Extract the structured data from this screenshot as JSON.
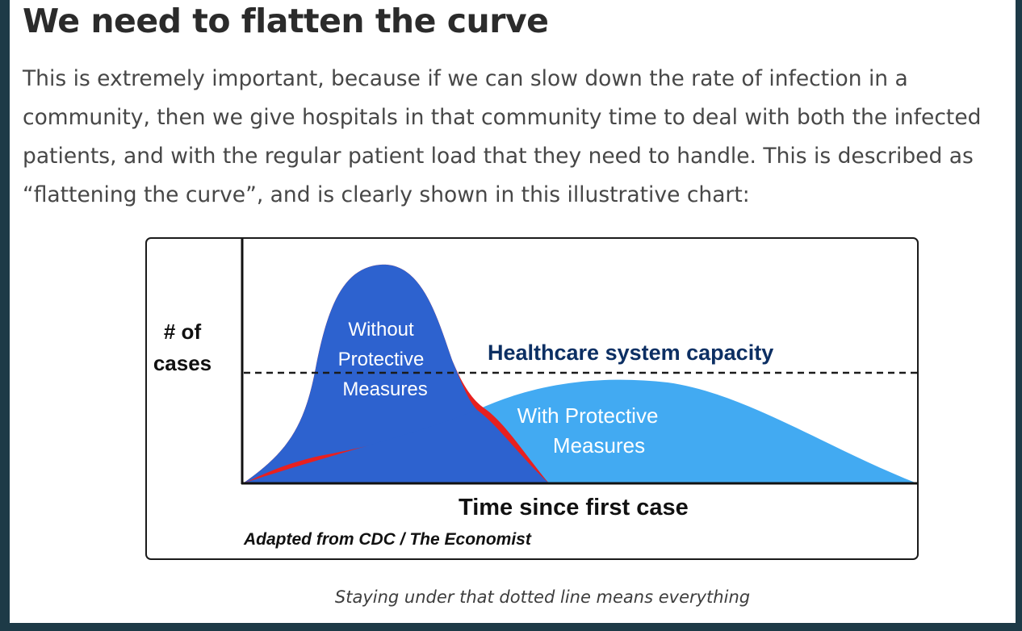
{
  "article": {
    "heading": "We need to flatten the curve",
    "paragraph": "This is extremely important, because if we can slow down the rate of infection in a community, then we give hospitals in that community time to deal with both the infected patients, and with the regular patient load that they need to handle. This is described as “flattening the curve”, and is clearly shown in this illustrative chart:",
    "caption": "Staying under that dotted line means everything"
  },
  "chart_data": {
    "type": "area",
    "ylabel_lines": [
      "# of",
      "cases"
    ],
    "xlabel": "Time since first case",
    "source": "Adapted from CDC / The Economist",
    "capacity_label": "Healthcare system capacity",
    "series": [
      {
        "name": "Without Protective Measures",
        "label_lines": [
          "Without",
          "Protective",
          "Measures"
        ],
        "color": "#e8201f"
      },
      {
        "name": "With Protective Measures",
        "label_lines": [
          "With Protective",
          "Measures"
        ],
        "color": "#42aaf2"
      }
    ],
    "overlap_color": "#2d62cf",
    "capacity_line_color": "#1b1b1b",
    "capacity_label_color": "#0c2f63",
    "grid": false,
    "axis_ticks": false
  }
}
